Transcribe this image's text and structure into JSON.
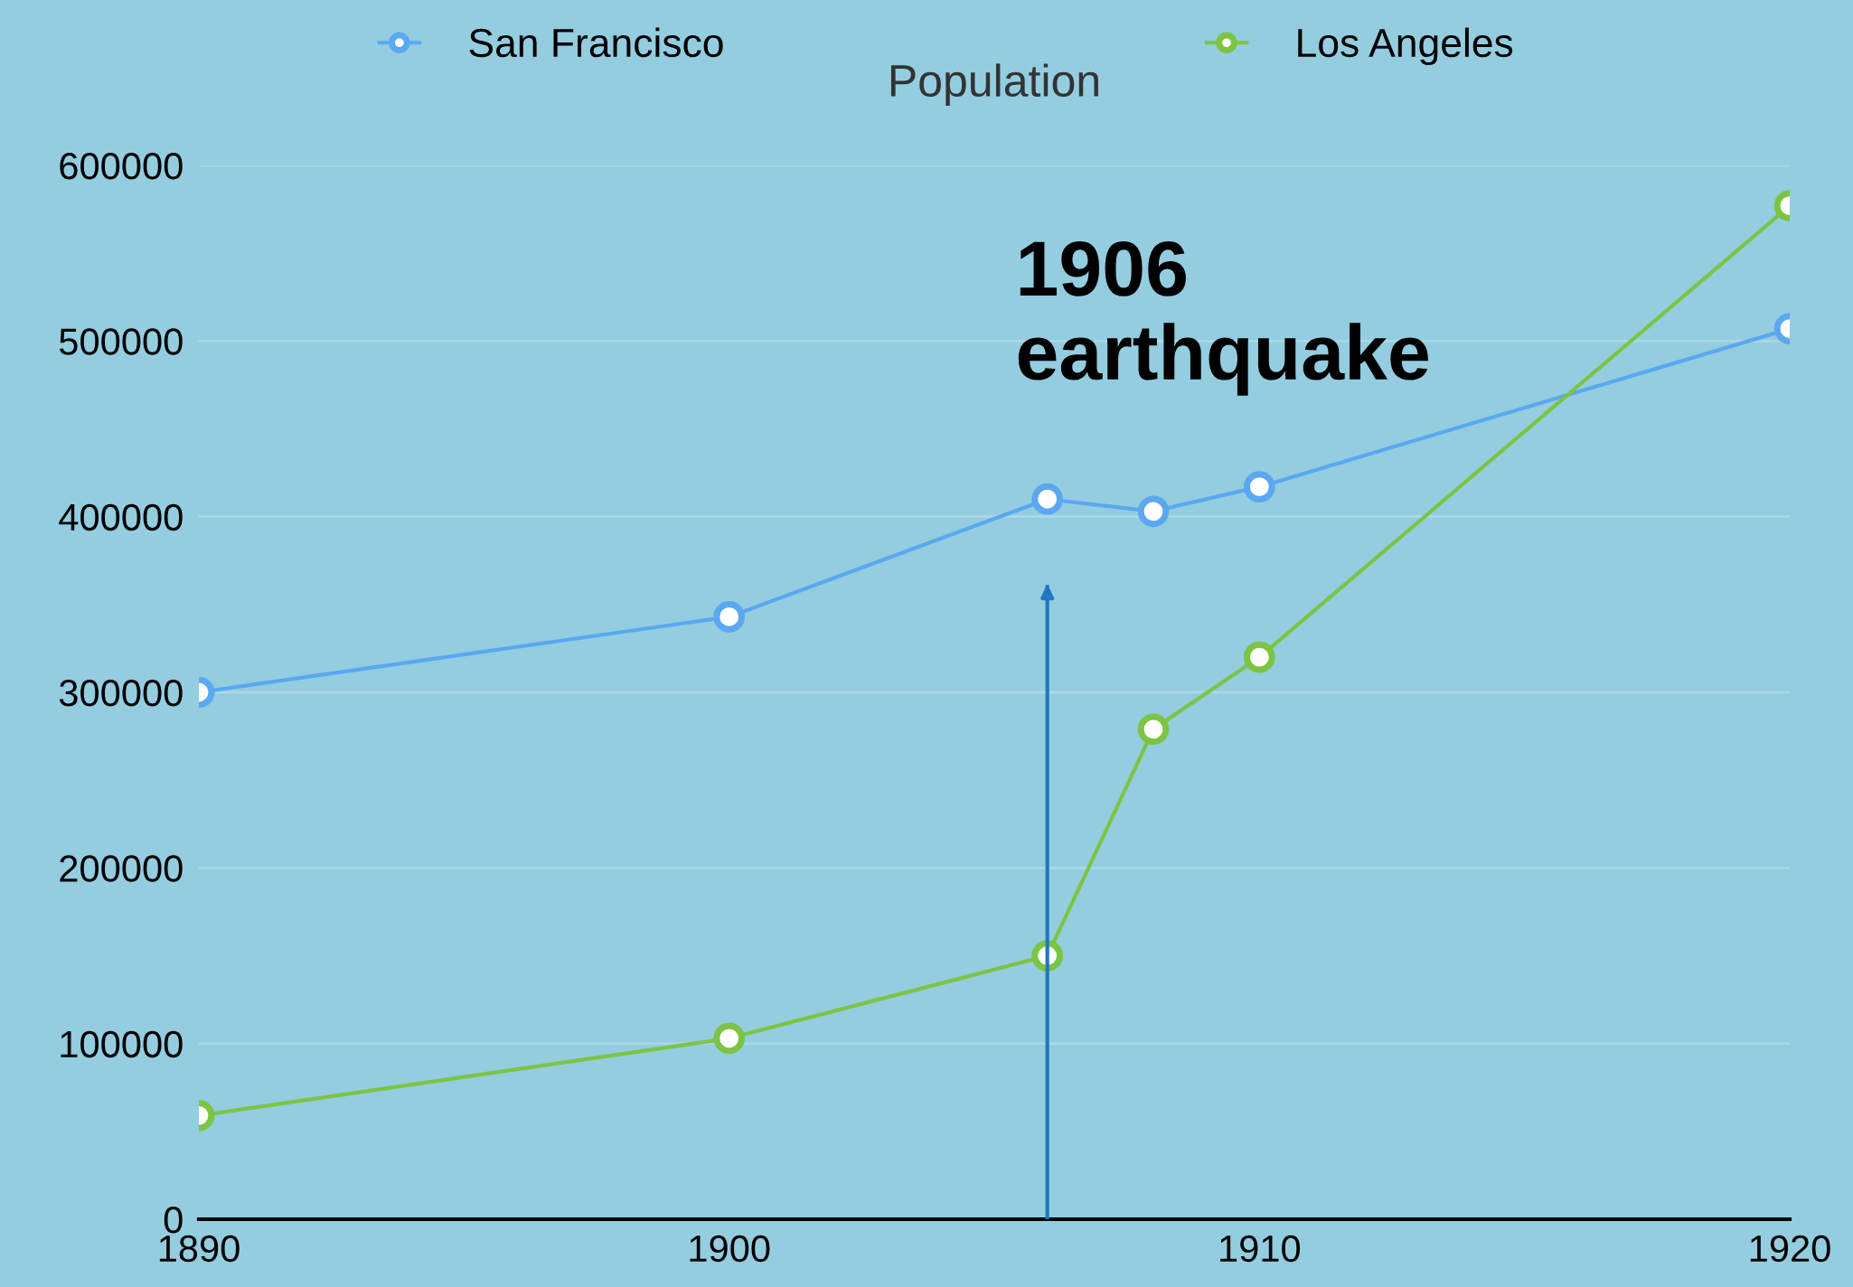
{
  "chart_data": {
    "type": "line",
    "title": "Population",
    "x": [
      1890,
      1900,
      1906,
      1908,
      1910,
      1920
    ],
    "series": [
      {
        "name": "San Francisco",
        "color": "#5aa8f0",
        "values": [
          300000,
          343000,
          410000,
          403000,
          417000,
          507000
        ]
      },
      {
        "name": "Los Angeles",
        "color": "#7cc442",
        "values": [
          59000,
          103000,
          150000,
          279000,
          320000,
          577000
        ]
      }
    ],
    "xlim": [
      1890,
      1920
    ],
    "xticks": [
      1890,
      1900,
      1910,
      1920
    ],
    "ylim": [
      0,
      600000
    ],
    "yticks": [
      0,
      100000,
      200000,
      300000,
      400000,
      500000,
      600000
    ],
    "ref_lines": [
      {
        "axis": "x",
        "value": 1906,
        "label": "1906\nearthquake",
        "color": "#1f78c0"
      }
    ],
    "grid": "y",
    "legend": "top",
    "marker": "circle",
    "line_style": "solid"
  }
}
